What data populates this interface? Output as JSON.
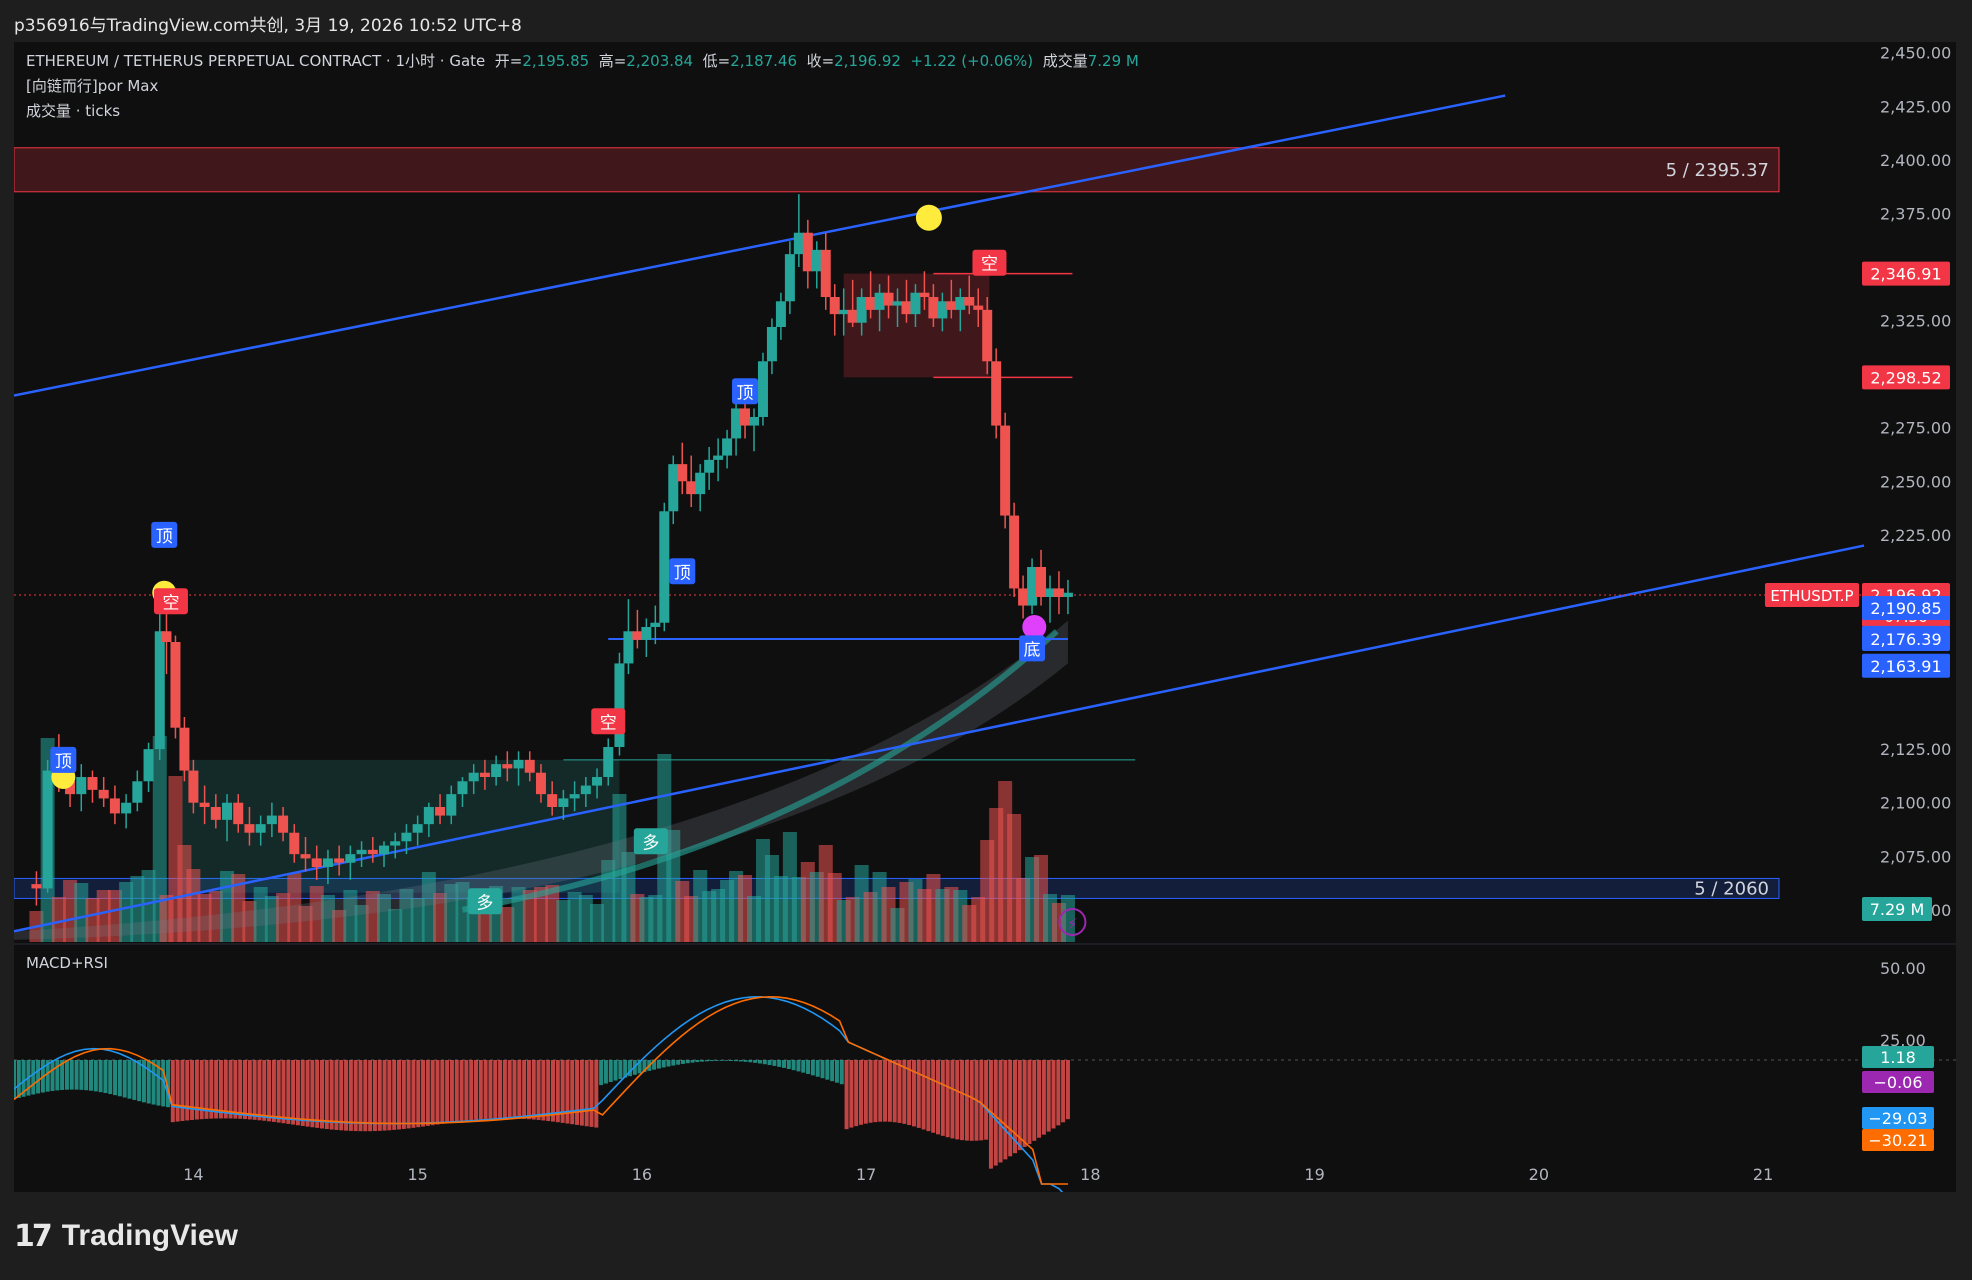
{
  "header": {
    "share_text": "p356916与TradingView.com共创, 3月 19, 2026 10:52 UTC+8"
  },
  "legend": {
    "symbol": "ETHEREUM / TETHERUS PERPETUAL CONTRACT · 1小时 · Gate",
    "open_label": "开=",
    "open": "2,195.85",
    "high_label": "高=",
    "high": "2,203.84",
    "low_label": "低=",
    "low": "2,187.46",
    "close_label": "收=",
    "close": "2,196.92",
    "change": "+1.22 (+0.06%)",
    "volume_label": "成交量",
    "volume": "7.29 M",
    "indicator_1": "[向链而行]por Max",
    "indicator_2": "成交量 · ticks",
    "macd_title": "MACD+RSI"
  },
  "colors": {
    "up": "#26a69a",
    "down": "#ef5350",
    "trendline": "#2962ff",
    "macd_line": "#2196f3",
    "signal_line": "#ff6d00",
    "background": "#0f0f0f"
  },
  "chart_data": [
    {
      "type": "candlestick",
      "x_ticks": [
        "14",
        "15",
        "16",
        "17",
        "18",
        "19",
        "20",
        "21"
      ],
      "y_ticks": [
        "2,450.00",
        "2,425.00",
        "2,400.00",
        "2,375.00",
        "2,325.00",
        "2,275.00",
        "2,250.00",
        "2,225.00",
        "2,125.00",
        "2,100.00",
        "2,075.00",
        "2,050.00"
      ],
      "ylim": [
        2035,
        2455
      ],
      "xlim": [
        13.2,
        21.45
      ],
      "ohlc": [
        [
          13.3,
          2062,
          2068,
          2052,
          2060
        ],
        [
          13.35,
          2060,
          2120,
          2058,
          2115
        ],
        [
          13.4,
          2115,
          2132,
          2105,
          2110
        ],
        [
          13.45,
          2110,
          2122,
          2098,
          2104
        ],
        [
          13.5,
          2104,
          2118,
          2096,
          2112
        ],
        [
          13.55,
          2112,
          2115,
          2100,
          2106
        ],
        [
          13.6,
          2106,
          2112,
          2098,
          2102
        ],
        [
          13.65,
          2102,
          2108,
          2090,
          2095
        ],
        [
          13.7,
          2095,
          2104,
          2088,
          2100
        ],
        [
          13.75,
          2100,
          2115,
          2096,
          2110
        ],
        [
          13.8,
          2110,
          2128,
          2105,
          2125
        ],
        [
          13.85,
          2125,
          2190,
          2120,
          2180
        ],
        [
          13.88,
          2180,
          2200,
          2160,
          2175
        ],
        [
          13.92,
          2175,
          2178,
          2130,
          2135
        ],
        [
          13.96,
          2135,
          2140,
          2110,
          2115
        ],
        [
          14.0,
          2115,
          2120,
          2095,
          2100
        ],
        [
          14.05,
          2100,
          2108,
          2090,
          2098
        ],
        [
          14.1,
          2098,
          2104,
          2088,
          2092
        ],
        [
          14.15,
          2092,
          2104,
          2082,
          2100
        ],
        [
          14.2,
          2100,
          2104,
          2086,
          2090
        ],
        [
          14.25,
          2090,
          2098,
          2080,
          2086
        ],
        [
          14.3,
          2086,
          2094,
          2080,
          2090
        ],
        [
          14.35,
          2090,
          2100,
          2084,
          2094
        ],
        [
          14.4,
          2094,
          2098,
          2082,
          2086
        ],
        [
          14.45,
          2086,
          2090,
          2072,
          2076
        ],
        [
          14.5,
          2076,
          2084,
          2068,
          2074
        ],
        [
          14.55,
          2074,
          2080,
          2064,
          2070
        ],
        [
          14.6,
          2070,
          2078,
          2062,
          2074
        ],
        [
          14.65,
          2074,
          2080,
          2066,
          2072
        ],
        [
          14.7,
          2072,
          2080,
          2064,
          2076
        ],
        [
          14.75,
          2076,
          2082,
          2070,
          2078
        ],
        [
          14.8,
          2078,
          2084,
          2072,
          2076
        ],
        [
          14.85,
          2076,
          2082,
          2070,
          2080
        ],
        [
          14.9,
          2080,
          2086,
          2074,
          2082
        ],
        [
          14.95,
          2082,
          2090,
          2076,
          2086
        ],
        [
          15.0,
          2086,
          2094,
          2080,
          2090
        ],
        [
          15.05,
          2090,
          2100,
          2084,
          2098
        ],
        [
          15.1,
          2098,
          2104,
          2090,
          2094
        ],
        [
          15.15,
          2094,
          2108,
          2090,
          2104
        ],
        [
          15.2,
          2104,
          2112,
          2098,
          2110
        ],
        [
          15.25,
          2110,
          2118,
          2104,
          2114
        ],
        [
          15.3,
          2114,
          2120,
          2106,
          2112
        ],
        [
          15.35,
          2112,
          2122,
          2108,
          2118
        ],
        [
          15.4,
          2118,
          2124,
          2110,
          2116
        ],
        [
          15.45,
          2116,
          2124,
          2108,
          2120
        ],
        [
          15.5,
          2120,
          2124,
          2110,
          2114
        ],
        [
          15.55,
          2114,
          2118,
          2100,
          2104
        ],
        [
          15.6,
          2104,
          2110,
          2094,
          2098
        ],
        [
          15.65,
          2098,
          2106,
          2092,
          2102
        ],
        [
          15.7,
          2102,
          2110,
          2096,
          2104
        ],
        [
          15.75,
          2104,
          2112,
          2098,
          2108
        ],
        [
          15.8,
          2108,
          2116,
          2102,
          2112
        ],
        [
          15.85,
          2112,
          2130,
          2108,
          2126
        ],
        [
          15.9,
          2126,
          2170,
          2122,
          2165
        ],
        [
          15.94,
          2165,
          2195,
          2160,
          2180
        ],
        [
          15.98,
          2180,
          2190,
          2172,
          2176
        ],
        [
          16.02,
          2176,
          2186,
          2168,
          2182
        ],
        [
          16.06,
          2182,
          2192,
          2174,
          2184
        ],
        [
          16.1,
          2184,
          2240,
          2180,
          2236
        ],
        [
          16.14,
          2236,
          2262,
          2230,
          2258
        ],
        [
          16.18,
          2258,
          2268,
          2244,
          2250
        ],
        [
          16.22,
          2250,
          2262,
          2238,
          2244
        ],
        [
          16.26,
          2244,
          2258,
          2236,
          2254
        ],
        [
          16.3,
          2254,
          2266,
          2246,
          2260
        ],
        [
          16.34,
          2260,
          2270,
          2250,
          2262
        ],
        [
          16.38,
          2262,
          2274,
          2256,
          2270
        ],
        [
          16.42,
          2270,
          2290,
          2262,
          2284
        ],
        [
          16.46,
          2284,
          2292,
          2270,
          2276
        ],
        [
          16.5,
          2276,
          2284,
          2264,
          2280
        ],
        [
          16.54,
          2280,
          2310,
          2276,
          2306
        ],
        [
          16.58,
          2306,
          2326,
          2300,
          2322
        ],
        [
          16.62,
          2322,
          2338,
          2316,
          2334
        ],
        [
          16.66,
          2334,
          2362,
          2328,
          2356
        ],
        [
          16.7,
          2356,
          2384,
          2350,
          2366
        ],
        [
          16.74,
          2366,
          2372,
          2340,
          2348
        ],
        [
          16.78,
          2348,
          2362,
          2340,
          2358
        ],
        [
          16.82,
          2358,
          2366,
          2330,
          2336
        ],
        [
          16.86,
          2336,
          2342,
          2318,
          2328
        ],
        [
          16.9,
          2328,
          2340,
          2318,
          2330
        ],
        [
          16.94,
          2330,
          2344,
          2322,
          2324
        ],
        [
          16.98,
          2324,
          2340,
          2318,
          2336
        ],
        [
          17.02,
          2336,
          2348,
          2326,
          2330
        ],
        [
          17.06,
          2330,
          2342,
          2320,
          2338
        ],
        [
          17.1,
          2338,
          2346,
          2326,
          2332
        ],
        [
          17.14,
          2332,
          2340,
          2322,
          2334
        ],
        [
          17.18,
          2334,
          2344,
          2324,
          2328
        ],
        [
          17.22,
          2328,
          2342,
          2322,
          2338
        ],
        [
          17.26,
          2338,
          2348,
          2330,
          2336
        ],
        [
          17.3,
          2336,
          2342,
          2322,
          2326
        ],
        [
          17.34,
          2326,
          2338,
          2320,
          2334
        ],
        [
          17.38,
          2334,
          2344,
          2326,
          2330
        ],
        [
          17.42,
          2330,
          2340,
          2320,
          2336
        ],
        [
          17.46,
          2336,
          2346,
          2328,
          2332
        ],
        [
          17.5,
          2332,
          2340,
          2322,
          2330
        ],
        [
          17.54,
          2330,
          2336,
          2300,
          2306
        ],
        [
          17.58,
          2306,
          2312,
          2270,
          2276
        ],
        [
          17.62,
          2276,
          2282,
          2228,
          2234
        ],
        [
          17.66,
          2234,
          2240,
          2196,
          2200
        ],
        [
          17.7,
          2200,
          2206,
          2186,
          2192
        ],
        [
          17.74,
          2192,
          2214,
          2188,
          2210
        ],
        [
          17.78,
          2210,
          2218,
          2192,
          2196
        ],
        [
          17.82,
          2196,
          2206,
          2184,
          2200
        ],
        [
          17.86,
          2200,
          2208,
          2188,
          2196
        ],
        [
          17.9,
          2196,
          2204,
          2188,
          2198
        ]
      ],
      "horizontal_zones": [
        {
          "label": "5 / 2395.37",
          "price": 2395.37
        },
        {
          "label": "5 / 2060",
          "price": 2060
        }
      ],
      "right_price_labels": [
        {
          "value": "2,346.91",
          "price": 2346.91,
          "color": "#f23645"
        },
        {
          "value": "2,298.52",
          "price": 2298.52,
          "color": "#f23645"
        },
        {
          "value": "2,196.92",
          "price": 2196.92,
          "color": "#f23645",
          "sub": "07:36"
        },
        {
          "value": "2,190.85",
          "price": 2190.85,
          "color": "#2962ff"
        },
        {
          "value": "2,176.91",
          "price": 2176.91,
          "color": "#2962ff"
        },
        {
          "value": "2,176.39",
          "price": 2176.39,
          "color": "#2962ff"
        },
        {
          "value": "2,163.91",
          "price": 2163.91,
          "color": "#2962ff"
        }
      ],
      "symbol_tag": "ETHUSDT.P",
      "volume_label": "7.29 M",
      "signals": [
        {
          "text": "顶",
          "x": 13.42,
          "price": 2120,
          "kind": "top"
        },
        {
          "text": "顶",
          "x": 13.87,
          "price": 2225,
          "kind": "top"
        },
        {
          "text": "空",
          "x": 13.9,
          "price": 2194,
          "kind": "short"
        },
        {
          "text": "空",
          "x": 15.85,
          "price": 2138,
          "kind": "short"
        },
        {
          "text": "顶",
          "x": 16.18,
          "price": 2208,
          "kind": "top"
        },
        {
          "text": "顶",
          "x": 16.46,
          "price": 2292,
          "kind": "top"
        },
        {
          "text": "多",
          "x": 15.3,
          "price": 2054,
          "kind": "long"
        },
        {
          "text": "多",
          "x": 16.04,
          "price": 2082,
          "kind": "long"
        },
        {
          "text": "空",
          "x": 17.55,
          "price": 2352,
          "kind": "short"
        },
        {
          "text": "底",
          "x": 17.74,
          "price": 2172,
          "kind": "bottom"
        }
      ]
    },
    {
      "type": "line",
      "title": "MACD+RSI",
      "y_ticks": [
        "50.00",
        "25.00"
      ],
      "right_labels": [
        {
          "value": "1.18",
          "color": "#26a69a"
        },
        {
          "value": "−0.06",
          "color": "#9c27b0"
        },
        {
          "value": "−29.03",
          "color": "#2196f3"
        },
        {
          "value": "−30.21",
          "color": "#ff6d00"
        }
      ]
    }
  ],
  "footer": {
    "logo_mark": "17",
    "logo_text": "TradingView"
  }
}
